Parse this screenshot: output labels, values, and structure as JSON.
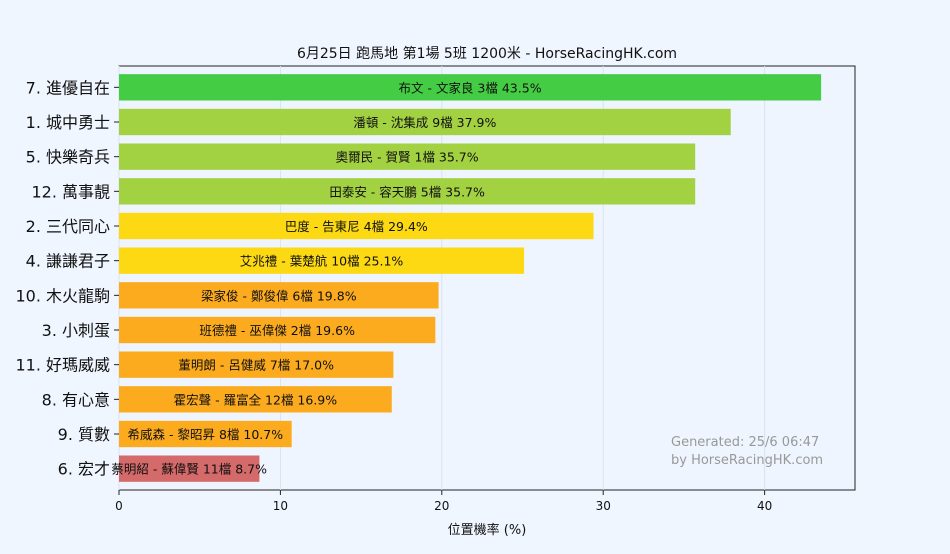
{
  "chart_data": {
    "type": "bar",
    "orientation": "horizontal",
    "title": "6月25日  跑馬地  第1場  5班  1200米 - HorseRacingHK.com",
    "xlabel": "位置機率 (%)",
    "ylabel": "",
    "xlim": [
      0,
      45.6
    ],
    "xticks": [
      0,
      10,
      20,
      30,
      40
    ],
    "grid": true,
    "categories": [
      "7. 進優自在",
      "1. 城中勇士",
      "5. 快樂奇兵",
      "12. 萬事靚",
      "2. 三代同心",
      "4. 謙謙君子",
      "10. 木火龍駒",
      "3. 小刺蛋",
      "11. 好瑪威威",
      "8. 有心意",
      "9. 質數",
      "6. 宏才"
    ],
    "values": [
      43.5,
      37.9,
      35.7,
      35.7,
      29.4,
      25.1,
      19.8,
      19.6,
      17.0,
      16.9,
      10.7,
      8.7
    ],
    "bar_labels": [
      "布文 - 文家良 3檔  43.5%",
      "潘頓 - 沈集成 9檔  37.9%",
      "奧爾民 - 賀賢 1檔  35.7%",
      "田泰安 - 容天鵬 5檔  35.7%",
      "巴度 - 告東尼 4檔  29.4%",
      "艾兆禮 - 葉楚航 10檔  25.1%",
      "梁家俊 - 鄭俊偉 6檔  19.8%",
      "班德禮 - 巫偉傑 2檔  19.6%",
      "董明朗 - 呂健威 7檔  17.0%",
      "霍宏聲 - 羅富全 12檔  16.9%",
      "希威森 - 黎昭昇 8檔  10.7%",
      "蔡明紹 - 蘇偉賢 11檔  8.7%"
    ],
    "bar_colors": [
      "#44cc44",
      "#a2d142",
      "#a2d142",
      "#a2d142",
      "#fcd912",
      "#fcd912",
      "#fcab1f",
      "#fcab1f",
      "#fcab1f",
      "#fcab1f",
      "#fcab1f",
      "#d46a6a"
    ],
    "annotation": [
      "Generated: 25/6 06:47",
      "by HorseRacingHK.com"
    ]
  }
}
